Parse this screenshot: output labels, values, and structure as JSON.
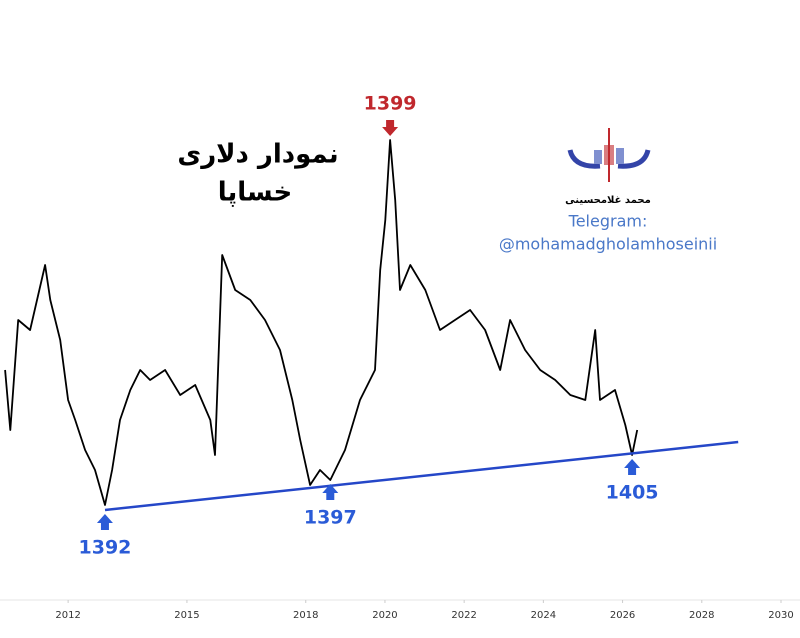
{
  "chart_data": {
    "type": "line",
    "title": [
      "نمودار  دلاری",
      "خساپا"
    ],
    "watermark": {
      "name": "محمد غلامحسینی",
      "telegram": "Telegram:",
      "handle": "@mohamadgholamhoseinii"
    },
    "xlim": [
      2010.28,
      2030.48
    ],
    "xticks": [
      2012,
      2015,
      2018,
      2020,
      2022,
      2024,
      2026,
      2028,
      2030
    ],
    "ylim": [
      0,
      110
    ],
    "series": [
      {
        "color": "#000000",
        "x": [
          2010.41,
          2010.54,
          2010.74,
          2011.04,
          2011.42,
          2011.55,
          2011.8,
          2012.0,
          2012.18,
          2012.43,
          2012.68,
          2012.93,
          2013.11,
          2013.31,
          2013.57,
          2013.82,
          2014.07,
          2014.45,
          2014.83,
          2015.21,
          2015.59,
          2015.71,
          2015.89,
          2016.22,
          2016.6,
          2016.97,
          2017.35,
          2017.66,
          2017.86,
          2018.11,
          2018.36,
          2018.62,
          2018.99,
          2019.37,
          2019.75,
          2019.88,
          2020.01,
          2020.13,
          2020.26,
          2020.38,
          2020.64,
          2021.02,
          2021.39,
          2021.77,
          2022.15,
          2022.53,
          2022.91,
          2023.16,
          2023.54,
          2023.92,
          2024.3,
          2024.68,
          2025.06,
          2025.31,
          2025.43,
          2025.81,
          2026.07,
          2026.24,
          2026.37
        ],
        "values": [
          42.5,
          27.5,
          55,
          52.5,
          68.75,
          60,
          50,
          35,
          30,
          22.5,
          17.5,
          8.75,
          17.5,
          30,
          37.5,
          42.5,
          40,
          42.5,
          36.25,
          38.75,
          30,
          21.25,
          71.25,
          62.5,
          60,
          55,
          47.5,
          35,
          25,
          13.75,
          17.5,
          15,
          22.5,
          35,
          42.5,
          67.5,
          80,
          100,
          85,
          62.5,
          68.75,
          62.5,
          52.5,
          55,
          57.5,
          52.5,
          42.5,
          55,
          47.5,
          42.5,
          40,
          36.25,
          35,
          52.5,
          35,
          37.5,
          28.75,
          21.25,
          27.5
        ]
      }
    ],
    "trendline": {
      "color": "#2547c8",
      "x": [
        2012.93,
        2028.92
      ],
      "values": [
        7.5,
        24.5
      ]
    },
    "annotations": [
      {
        "text": "1392",
        "x": 2012.93,
        "y": 7.5,
        "color": "#2a5bd7",
        "position": "below"
      },
      {
        "text": "1397",
        "x": 2018.62,
        "y": 15,
        "color": "#2a5bd7",
        "position": "below"
      },
      {
        "text": "1399",
        "x": 2020.13,
        "y": 100,
        "color": "#c0282d",
        "position": "above"
      },
      {
        "text": "1405",
        "x": 2026.24,
        "y": 21.25,
        "color": "#2a5bd7",
        "position": "below"
      }
    ]
  }
}
